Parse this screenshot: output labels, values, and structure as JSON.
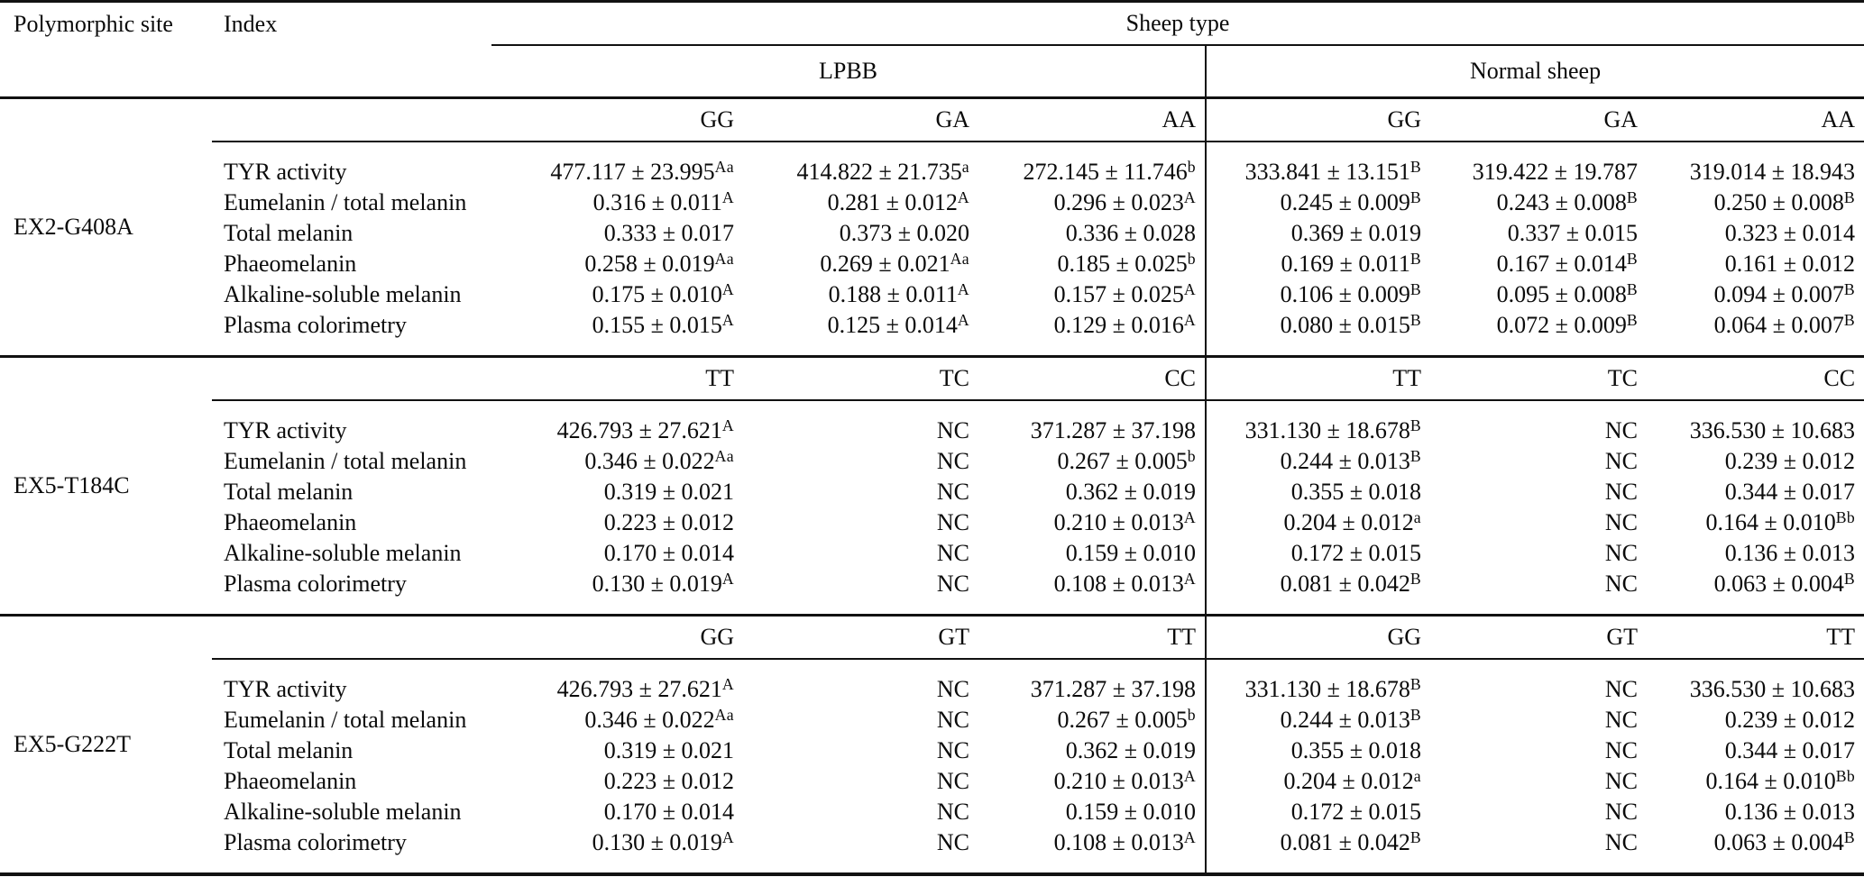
{
  "header": {
    "polymorphic_site": "Polymorphic site",
    "index": "Index",
    "sheep_type": "Sheep type",
    "lpbb": "LPBB",
    "normal_sheep": "Normal sheep"
  },
  "index_labels": [
    "TYR activity",
    "Eumelanin / total melanin",
    "Total melanin",
    "Phaeomelanin",
    "Alkaline-soluble melanin",
    "Plasma colorimetry"
  ],
  "groups": [
    {
      "site": "EX2-G408A",
      "genotypes_lpbb": [
        "GG",
        "GA",
        "AA"
      ],
      "genotypes_normal": [
        "GG",
        "GA",
        "AA"
      ],
      "rows": [
        [
          "477.117 ± 23.995^Aa",
          "414.822 ± 21.735^a",
          "272.145 ± 11.746^b",
          "333.841 ± 13.151^B",
          "319.422 ± 19.787",
          "319.014 ± 18.943"
        ],
        [
          "0.316 ± 0.011^A",
          "0.281 ± 0.012^A",
          "0.296 ± 0.023^A",
          "0.245 ± 0.009^B",
          "0.243 ± 0.008^B",
          "0.250 ± 0.008^B"
        ],
        [
          "0.333 ± 0.017",
          "0.373 ± 0.020",
          "0.336 ± 0.028",
          "0.369 ± 0.019",
          "0.337 ± 0.015",
          "0.323 ± 0.014"
        ],
        [
          "0.258 ± 0.019^Aa",
          "0.269 ± 0.021^Aa",
          "0.185 ± 0.025^b",
          "0.169 ± 0.011^B",
          "0.167 ± 0.014^B",
          "0.161 ± 0.012"
        ],
        [
          "0.175 ± 0.010^A",
          "0.188 ± 0.011^A",
          "0.157 ± 0.025^A",
          "0.106 ± 0.009^B",
          "0.095 ± 0.008^B",
          "0.094 ± 0.007^B"
        ],
        [
          "0.155 ± 0.015^A",
          "0.125 ± 0.014^A",
          "0.129 ± 0.016^A",
          "0.080 ± 0.015^B",
          "0.072 ± 0.009^B",
          "0.064 ± 0.007^B"
        ]
      ]
    },
    {
      "site": "EX5-T184C",
      "genotypes_lpbb": [
        "TT",
        "TC",
        "CC"
      ],
      "genotypes_normal": [
        "TT",
        "TC",
        "CC"
      ],
      "rows": [
        [
          "426.793 ± 27.621^A",
          "NC",
          "371.287 ± 37.198",
          "331.130 ± 18.678^B",
          "NC",
          "336.530 ± 10.683"
        ],
        [
          "0.346 ± 0.022^Aa",
          "NC",
          "0.267 ± 0.005^b",
          "0.244 ± 0.013^B",
          "NC",
          "0.239 ± 0.012"
        ],
        [
          "0.319 ± 0.021",
          "NC",
          "0.362 ± 0.019",
          "0.355 ± 0.018",
          "NC",
          "0.344 ± 0.017"
        ],
        [
          "0.223 ± 0.012",
          "NC",
          "0.210 ± 0.013^A",
          "0.204 ± 0.012^a",
          "NC",
          "0.164 ± 0.010^Bb"
        ],
        [
          "0.170 ± 0.014",
          "NC",
          "0.159 ± 0.010",
          "0.172 ± 0.015",
          "NC",
          "0.136 ± 0.013"
        ],
        [
          "0.130 ± 0.019^A",
          "NC",
          "0.108 ± 0.013^A",
          "0.081 ± 0.042^B",
          "NC",
          "0.063 ± 0.004^B"
        ]
      ]
    },
    {
      "site": "EX5-G222T",
      "genotypes_lpbb": [
        "GG",
        "GT",
        "TT"
      ],
      "genotypes_normal": [
        "GG",
        "GT",
        "TT"
      ],
      "rows": [
        [
          "426.793 ± 27.621^A",
          "NC",
          "371.287 ± 37.198",
          "331.130 ± 18.678^B",
          "NC",
          "336.530 ± 10.683"
        ],
        [
          "0.346 ± 0.022^Aa",
          "NC",
          "0.267 ± 0.005^b",
          "0.244 ± 0.013^B",
          "NC",
          "0.239 ± 0.012"
        ],
        [
          "0.319 ± 0.021",
          "NC",
          "0.362 ± 0.019",
          "0.355 ± 0.018",
          "NC",
          "0.344 ± 0.017"
        ],
        [
          "0.223 ± 0.012",
          "NC",
          "0.210 ± 0.013^A",
          "0.204 ± 0.012^a",
          "NC",
          "0.164 ± 0.010^Bb"
        ],
        [
          "0.170 ± 0.014",
          "NC",
          "0.159 ± 0.010",
          "0.172 ± 0.015",
          "NC",
          "0.136 ± 0.013"
        ],
        [
          "0.130 ± 0.019^A",
          "NC",
          "0.108 ± 0.013^A",
          "0.081 ± 0.042^B",
          "NC",
          "0.063 ± 0.004^B"
        ]
      ]
    }
  ]
}
